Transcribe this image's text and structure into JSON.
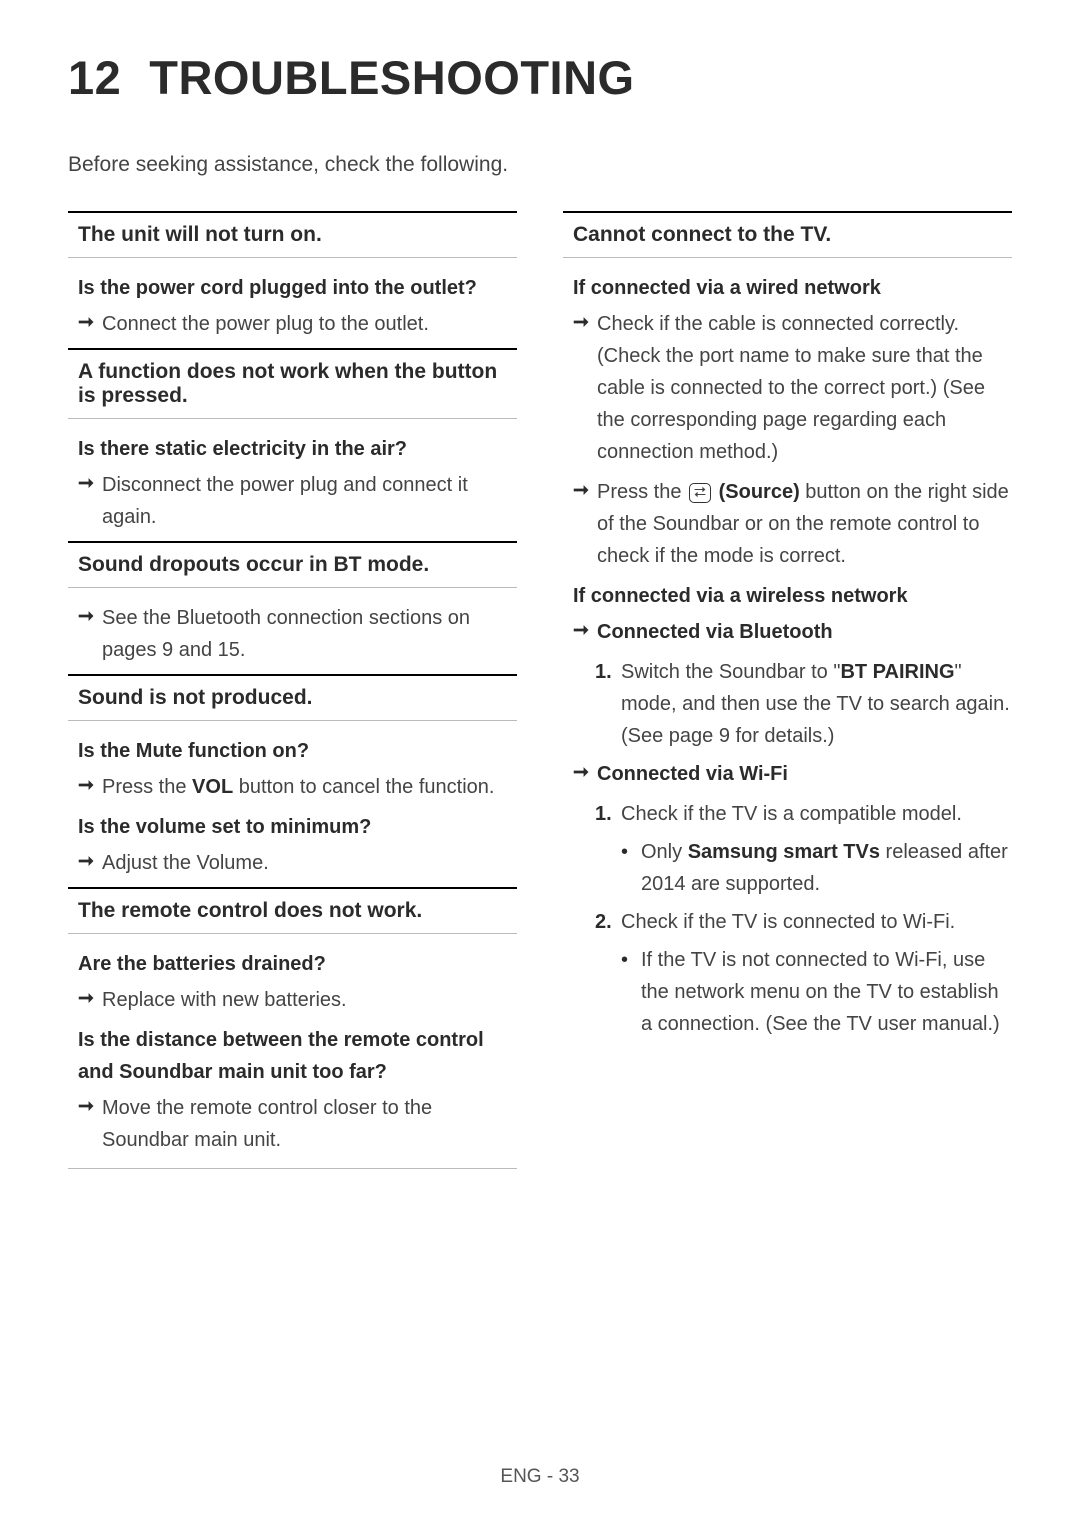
{
  "title": {
    "number": "12",
    "text": "TROUBLESHOOTING"
  },
  "intro": "Before seeking assistance, check the following.",
  "footer": "ENG - 33",
  "left": {
    "s1": {
      "header": "The unit will not turn on.",
      "q1": "Is the power cord plugged into the outlet?",
      "a1": "Connect the power plug to the outlet."
    },
    "s2": {
      "header": "A function does not work when the button is pressed.",
      "q1": "Is there static electricity in the air?",
      "a1": "Disconnect the power plug and connect it again."
    },
    "s3": {
      "header": "Sound dropouts occur in BT mode.",
      "a1": "See the Bluetooth connection sections on pages 9 and 15."
    },
    "s4": {
      "header": "Sound is not produced.",
      "q1": "Is the Mute function on?",
      "a1_pre": "Press the ",
      "a1_bold": "VOL",
      "a1_post": " button to cancel the function.",
      "q2": "Is the volume set to minimum?",
      "a2": "Adjust the Volume."
    },
    "s5": {
      "header": "The remote control does not work.",
      "q1": "Are the batteries drained?",
      "a1": "Replace with new batteries.",
      "q2": "Is the distance between the remote control and Soundbar main unit too far?",
      "a2": "Move the remote control closer to the Soundbar main unit."
    }
  },
  "right": {
    "s1": {
      "header": "Cannot connect to the TV.",
      "q1": "If connected via a wired network",
      "a1": "Check if the cable is connected correctly. (Check the port name to make sure that the cable is connected to the correct port.) (See the corresponding page regarding each connection method.)",
      "a2_pre": "Press the ",
      "a2_icon": "⮂",
      "a2_bold": " (Source)",
      "a2_post": " button on the right side of the Soundbar or on the remote control to check if the mode is correct.",
      "q2": "If connected via a wireless network",
      "bt_label": "Connected via Bluetooth",
      "bt1_pre": "Switch the Soundbar to \"",
      "bt1_bold": "BT PAIRING",
      "bt1_post": "\" mode, and then use the TV to search again. (See page 9 for details.)",
      "wifi_label": "Connected via Wi-Fi",
      "wifi1": "Check if the TV is a compatible model.",
      "wifi1b_pre": "Only ",
      "wifi1b_bold": "Samsung smart TVs",
      "wifi1b_post": " released after 2014 are supported.",
      "wifi2": "Check if the TV is connected to Wi-Fi.",
      "wifi2b": "If the TV is not connected to Wi-Fi, use the network menu on the TV to establish a connection. (See the TV user manual.)"
    }
  }
}
